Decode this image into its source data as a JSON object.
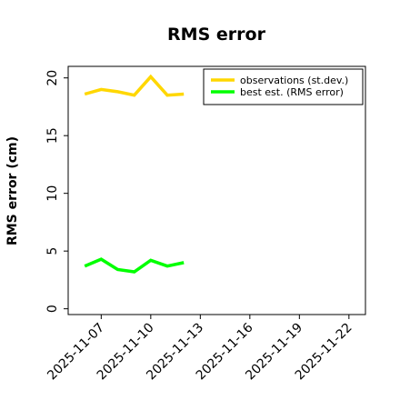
{
  "chart_data": {
    "type": "line",
    "title": "RMS error",
    "xlabel": "",
    "ylabel": "RMS error (cm)",
    "xlim": [
      "2025-11-05",
      "2025-11-23"
    ],
    "ylim": [
      -0.5,
      21
    ],
    "yticks": [
      0,
      5,
      10,
      15,
      20
    ],
    "xticks": [
      "2025-11-07",
      "2025-11-10",
      "2025-11-13",
      "2025-11-16",
      "2025-11-19",
      "2025-11-22"
    ],
    "highlighted_xtick": "2025-11-13",
    "highlight_color": "#228b22",
    "x": [
      "2025-11-06",
      "2025-11-07",
      "2025-11-08",
      "2025-11-09",
      "2025-11-10",
      "2025-11-11",
      "2025-11-12"
    ],
    "series": [
      {
        "name": "observations (st.dev.)",
        "color": "#ffd700",
        "values": [
          18.6,
          19.0,
          18.8,
          18.5,
          20.1,
          18.5,
          18.6
        ]
      },
      {
        "name": "best est. (RMS error)",
        "color": "#00ff00",
        "values": [
          3.7,
          4.3,
          3.4,
          3.2,
          4.2,
          3.7,
          4.0
        ]
      }
    ],
    "legend": "top-right",
    "grid": false
  }
}
